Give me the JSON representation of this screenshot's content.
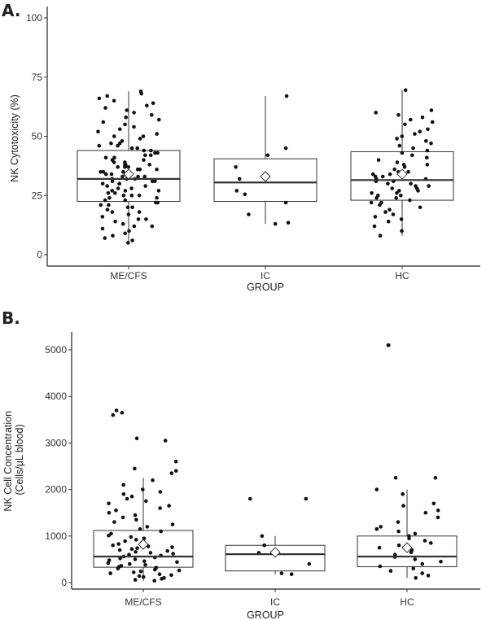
{
  "panels": [
    {
      "label": "A."
    },
    {
      "label": "B."
    }
  ],
  "colors": {
    "points": "#111111",
    "box_line": "#333333",
    "median": "#333333",
    "mean_fill": "#ffffff"
  },
  "chart_data": [
    {
      "type": "box",
      "title": "",
      "xlabel": "GROUP",
      "ylabel": "NK Cytotoxicity (%)",
      "ylim": [
        0,
        100
      ],
      "yticks": [
        0,
        25,
        50,
        75,
        100
      ],
      "categories": [
        "ME/CFS",
        "IC",
        "HC"
      ],
      "grid": false,
      "boxes": [
        {
          "group": "ME/CFS",
          "whisker_low": 5,
          "q1": 22.5,
          "median": 32,
          "q3": 44,
          "whisker_high": 69,
          "mean": 34
        },
        {
          "group": "IC",
          "whisker_low": 13,
          "q1": 22.5,
          "median": 30.5,
          "q3": 40.5,
          "whisker_high": 67,
          "mean": 33
        },
        {
          "group": "HC",
          "whisker_low": 8,
          "q1": 23,
          "median": 31.5,
          "q3": 43.5,
          "whisker_high": 69.5,
          "mean": 34
        }
      ],
      "points": {
        "ME/CFS": [
          5,
          6,
          7,
          8,
          9,
          10,
          11,
          12,
          12,
          13,
          14,
          15,
          15,
          16,
          17,
          18,
          18,
          19,
          20,
          20,
          21,
          21,
          22,
          22,
          23,
          23,
          24,
          24,
          25,
          25,
          25,
          26,
          26,
          27,
          27,
          27,
          28,
          28,
          29,
          29,
          30,
          30,
          30,
          31,
          31,
          31,
          32,
          32,
          32,
          33,
          33,
          33,
          34,
          34,
          34,
          35,
          35,
          35,
          36,
          36,
          36,
          37,
          37,
          37,
          38,
          38,
          38,
          39,
          39,
          40,
          40,
          41,
          41,
          42,
          42,
          43,
          43,
          44,
          44,
          45,
          45,
          46,
          46,
          47,
          47,
          48,
          49,
          50,
          50,
          51,
          52,
          53,
          54,
          55,
          56,
          57,
          58,
          59,
          60,
          61,
          62,
          63,
          64,
          65,
          66,
          67,
          68,
          69
        ],
        "IC": [
          13,
          13.5,
          17,
          22,
          25.5,
          27,
          32,
          37,
          42,
          45,
          67
        ],
        "HC": [
          8,
          10,
          12,
          14,
          15,
          16,
          17,
          18,
          19,
          20,
          21,
          22,
          22,
          23,
          24,
          24,
          25,
          25,
          26,
          26,
          27,
          27,
          28,
          28,
          29,
          29,
          30,
          30,
          31,
          31,
          32,
          32,
          33,
          33,
          34,
          34,
          35,
          35,
          36,
          37,
          38,
          38,
          39,
          40,
          41,
          42,
          43,
          44,
          45,
          46,
          47,
          48,
          49,
          50,
          51,
          52,
          53,
          55,
          56,
          57,
          58,
          59,
          60,
          61,
          69.5
        ]
      }
    },
    {
      "type": "box",
      "title": "",
      "xlabel": "GROUP",
      "ylabel": "NK Cell Concentration\n(Cells/μL blood)",
      "ylim": [
        0,
        5300
      ],
      "yticks": [
        0,
        1000,
        2000,
        3000,
        4000,
        5000
      ],
      "categories": [
        "ME/CFS",
        "IC",
        "HC"
      ],
      "grid": false,
      "boxes": [
        {
          "group": "ME/CFS",
          "whisker_low": 40,
          "q1": 330,
          "median": 560,
          "q3": 1120,
          "whisker_high": 2250,
          "mean": 820
        },
        {
          "group": "IC",
          "whisker_low": 180,
          "q1": 250,
          "median": 610,
          "q3": 800,
          "whisker_high": 1000,
          "mean": 650
        },
        {
          "group": "HC",
          "whisker_low": 100,
          "q1": 340,
          "median": 560,
          "q3": 1000,
          "whisker_high": 2000,
          "mean": 750
        }
      ],
      "points": {
        "ME/CFS": [
          40,
          60,
          80,
          100,
          120,
          140,
          160,
          180,
          200,
          220,
          240,
          260,
          280,
          300,
          320,
          340,
          360,
          380,
          400,
          420,
          440,
          460,
          480,
          500,
          520,
          540,
          560,
          580,
          600,
          620,
          640,
          660,
          680,
          700,
          720,
          740,
          760,
          780,
          800,
          830,
          860,
          890,
          920,
          950,
          980,
          1010,
          1050,
          1100,
          1150,
          1200,
          1250,
          1300,
          1350,
          1400,
          1450,
          1500,
          1550,
          1600,
          1650,
          1700,
          1750,
          1800,
          1850,
          1900,
          1950,
          2000,
          2100,
          2200,
          2350,
          2400,
          2450,
          2600,
          3050,
          3100,
          3600,
          3650,
          3700
        ],
        "IC": [
          180,
          200,
          400,
          640,
          800,
          1000,
          1800,
          1800
        ],
        "HC": [
          100,
          150,
          200,
          250,
          300,
          350,
          400,
          450,
          500,
          550,
          600,
          650,
          700,
          750,
          800,
          850,
          900,
          950,
          1000,
          1050,
          1100,
          1150,
          1200,
          1300,
          1400,
          1500,
          1550,
          1650,
          1700,
          1900,
          2000,
          2250,
          2250,
          5100,
          5100
        ]
      }
    }
  ]
}
